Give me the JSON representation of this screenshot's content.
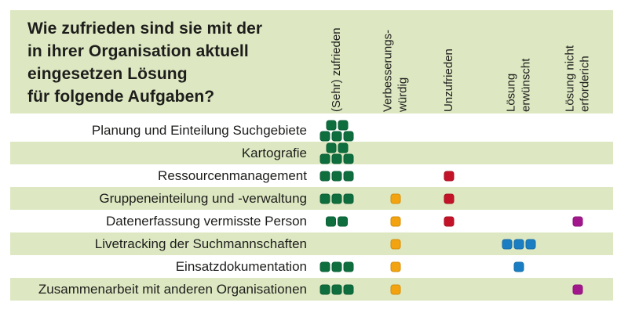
{
  "title": {
    "lines": [
      "Wie zufrieden sind sie mit der",
      "in ihrer Organisation aktuell",
      "eingesetzen Lösung",
      "für folgende Aufgaben?"
    ]
  },
  "colors": {
    "band_green": "#dde8c2",
    "text": "#1d1d1b",
    "satisfied_green": "#0e6e3e",
    "improvable_orange": "#f2a30f",
    "unsatisfied_red": "#c31328",
    "wanted_blue": "#1b7ec2",
    "not_required_purple": "#a2188c"
  },
  "chart_data": {
    "type": "heatmap",
    "subtype": "dot-matrix",
    "title": "Wie zufrieden sind sie mit der in ihrer Organisation aktuell eingesetzen Lösung für folgende Aufgaben?",
    "legend_position": "top-rotated-column-headers",
    "grid": false,
    "columns": [
      {
        "label": "(Sehr) zufrieden",
        "color": "#0e6e3e"
      },
      {
        "label": "Verbesserungs-\nwürdig",
        "color": "#f2a30f"
      },
      {
        "label": "Unzufrieden",
        "color": "#c31328"
      },
      {
        "label": "Lösung\nerwünscht",
        "color": "#1b7ec2"
      },
      {
        "label": "Lösung nicht\nerforderich",
        "color": "#a2188c"
      }
    ],
    "rows": [
      {
        "label": "Planung und Einteilung Suchgebiete",
        "counts": [
          5,
          0,
          0,
          0,
          0
        ]
      },
      {
        "label": "Kartografie",
        "counts": [
          5,
          0,
          0,
          0,
          0
        ]
      },
      {
        "label": "Ressourcenmanagement",
        "counts": [
          3,
          0,
          1,
          0,
          0
        ]
      },
      {
        "label": "Gruppeneinteilung und -verwaltung",
        "counts": [
          3,
          1,
          1,
          0,
          0
        ]
      },
      {
        "label": "Datenerfassung vermisste Person",
        "counts": [
          2,
          1,
          1,
          0,
          1
        ]
      },
      {
        "label": "Livetracking der Suchmannschaften",
        "counts": [
          0,
          1,
          0,
          3,
          0
        ]
      },
      {
        "label": "Einsatzdokumentation",
        "counts": [
          3,
          1,
          0,
          1,
          0
        ]
      },
      {
        "label": "Zusammenarbeit mit anderen Organisationen",
        "counts": [
          3,
          1,
          0,
          0,
          1
        ]
      }
    ]
  }
}
